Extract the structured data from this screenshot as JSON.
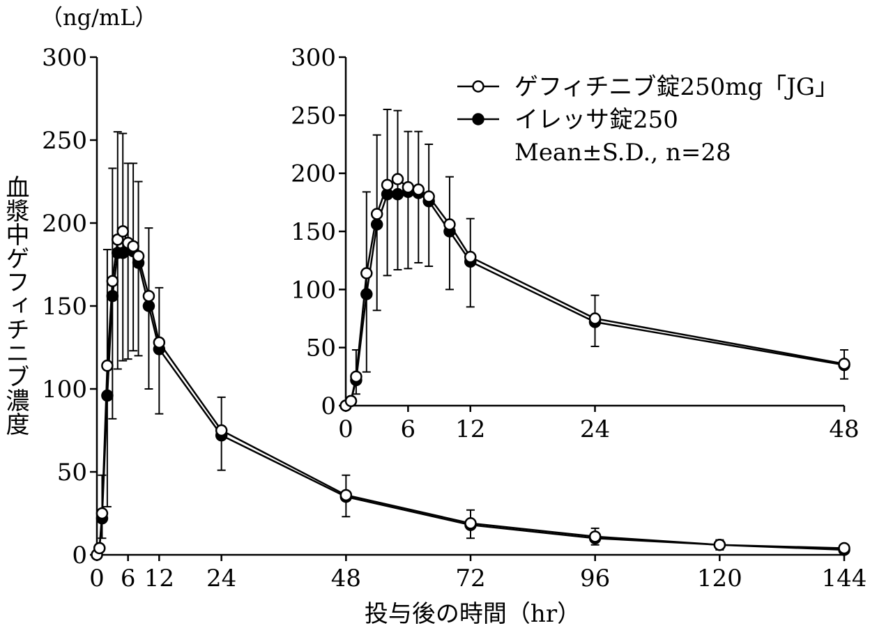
{
  "chart_data": [
    {
      "type": "line",
      "name": "main",
      "unit_label": "（ng/mL）",
      "ylabel": "血漿中ゲフィチニブ濃度",
      "xlabel": "投与後の時間（hr）",
      "xlim": [
        0,
        144
      ],
      "ylim": [
        0,
        300
      ],
      "xticks": [
        0,
        6,
        12,
        24,
        48,
        72,
        96,
        120,
        144
      ],
      "yticks": [
        0,
        50,
        100,
        150,
        200,
        250,
        300
      ],
      "series": [
        {
          "name": "ゲフィチニブ錠250mg「JG」",
          "marker": "open-circle",
          "points": [
            {
              "x": 0,
              "y": 0
            },
            {
              "x": 0.5,
              "y": 4
            },
            {
              "x": 1,
              "y": 25
            },
            {
              "x": 2,
              "y": 114
            },
            {
              "x": 3,
              "y": 165
            },
            {
              "x": 4,
              "y": 190
            },
            {
              "x": 5,
              "y": 195
            },
            {
              "x": 6,
              "y": 188
            },
            {
              "x": 7,
              "y": 186
            },
            {
              "x": 8,
              "y": 180
            },
            {
              "x": 10,
              "y": 156
            },
            {
              "x": 12,
              "y": 128
            },
            {
              "x": 24,
              "y": 75
            },
            {
              "x": 48,
              "y": 36
            },
            {
              "x": 72,
              "y": 19
            },
            {
              "x": 96,
              "y": 11
            },
            {
              "x": 120,
              "y": 6
            },
            {
              "x": 144,
              "y": 4
            }
          ]
        },
        {
          "name": "イレッサ錠250",
          "marker": "filled-circle",
          "points": [
            {
              "x": 0,
              "y": 0
            },
            {
              "x": 0.5,
              "y": 4
            },
            {
              "x": 1,
              "y": 22
            },
            {
              "x": 2,
              "y": 96
            },
            {
              "x": 3,
              "y": 156
            },
            {
              "x": 4,
              "y": 182
            },
            {
              "x": 5,
              "y": 182
            },
            {
              "x": 6,
              "y": 184
            },
            {
              "x": 7,
              "y": 183
            },
            {
              "x": 8,
              "y": 176
            },
            {
              "x": 10,
              "y": 150
            },
            {
              "x": 12,
              "y": 124
            },
            {
              "x": 24,
              "y": 72
            },
            {
              "x": 48,
              "y": 35
            },
            {
              "x": 72,
              "y": 18
            },
            {
              "x": 96,
              "y": 10
            },
            {
              "x": 120,
              "y": 6
            },
            {
              "x": 144,
              "y": 3
            }
          ]
        }
      ],
      "error_bars": [
        {
          "x": 1,
          "lo": 10,
          "hi": 48
        },
        {
          "x": 2,
          "lo": 29,
          "hi": 184
        },
        {
          "x": 3,
          "lo": 82,
          "hi": 233
        },
        {
          "x": 4,
          "lo": 112,
          "hi": 255
        },
        {
          "x": 5,
          "lo": 117,
          "hi": 254
        },
        {
          "x": 6,
          "lo": 118,
          "hi": 236
        },
        {
          "x": 7,
          "lo": 123,
          "hi": 236
        },
        {
          "x": 8,
          "lo": 120,
          "hi": 225
        },
        {
          "x": 10,
          "lo": 100,
          "hi": 197
        },
        {
          "x": 12,
          "lo": 85,
          "hi": 161
        },
        {
          "x": 24,
          "lo": 51,
          "hi": 95
        },
        {
          "x": 48,
          "lo": 23,
          "hi": 48
        },
        {
          "x": 72,
          "lo": 10,
          "hi": 27
        },
        {
          "x": 96,
          "lo": 6,
          "hi": 16
        },
        {
          "x": 120,
          "lo": 3,
          "hi": 9
        },
        {
          "x": 144,
          "lo": 1,
          "hi": 6
        }
      ]
    },
    {
      "type": "line",
      "name": "inset",
      "xlim": [
        0,
        48
      ],
      "ylim": [
        0,
        300
      ],
      "xticks": [
        0,
        6,
        12,
        24,
        48
      ],
      "yticks": [
        0,
        50,
        100,
        150,
        200,
        250,
        300
      ],
      "legend": [
        {
          "label": "ゲフィチニブ錠250mg「JG」",
          "marker": "open-circle"
        },
        {
          "label": "イレッサ錠250",
          "marker": "filled-circle"
        }
      ],
      "note": "Mean±S.D., n=28",
      "series_ref": "main",
      "x_max_shown": 48
    }
  ]
}
